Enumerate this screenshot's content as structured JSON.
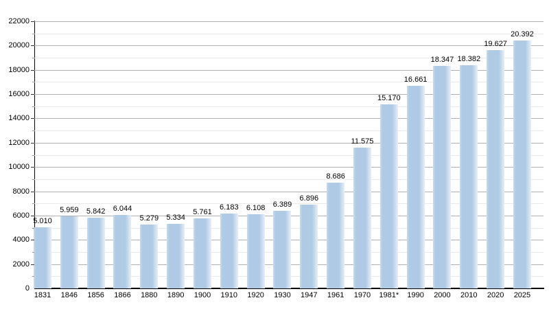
{
  "chart_data": {
    "type": "bar",
    "title": "",
    "xlabel": "",
    "ylabel": "",
    "categories": [
      "1831",
      "1846",
      "1856",
      "1866",
      "1880",
      "1890",
      "1900",
      "1910",
      "1920",
      "1930",
      "1947",
      "1961",
      "1970",
      "1981*",
      "1990",
      "2000",
      "2010",
      "2020",
      "2025"
    ],
    "values": [
      5010,
      5959,
      5842,
      6044,
      5279,
      5334,
      5761,
      6183,
      6108,
      6389,
      6896,
      8686,
      11575,
      15170,
      16661,
      18347,
      18382,
      19627,
      20392
    ],
    "value_labels": [
      "5.010",
      "5.959",
      "5.842",
      "6.044",
      "5.279",
      "5.334",
      "5.761",
      "6.183",
      "6.108",
      "6.389",
      "6.896",
      "8.686",
      "11.575",
      "15.170",
      "16.661",
      "18.347",
      "18.382",
      "19.627",
      "20.392"
    ],
    "ylim": [
      0,
      22000
    ],
    "yticks": [
      0,
      2000,
      4000,
      6000,
      8000,
      10000,
      12000,
      14000,
      16000,
      18000,
      20000,
      22000
    ],
    "ytick_labels": [
      "0",
      "2000",
      "4000",
      "6000",
      "8000",
      "10000",
      "12000",
      "14000",
      "16000",
      "18000",
      "20000",
      "22000"
    ],
    "minor_tick_step": 1000,
    "grid": "on",
    "legend": "none",
    "colors": {
      "bar_main": "#aecae5",
      "bar_left_edge": "#c9daee",
      "bar_right_fade": "#e8eff8",
      "grid_major": "#b0b0b0",
      "grid_minor": "#e9e9e9",
      "axis": "#000000",
      "background": "#ffffff"
    }
  }
}
